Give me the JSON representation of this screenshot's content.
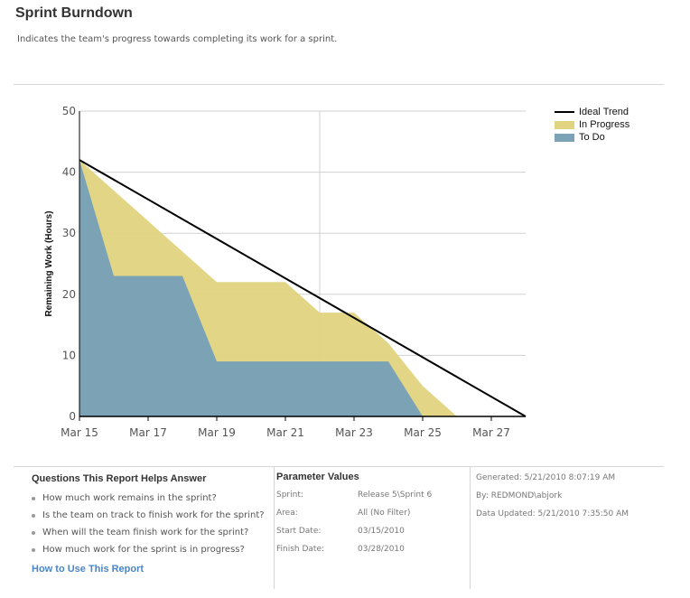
{
  "header": {
    "title": "Sprint Burndown",
    "subtitle": "Indicates the team's progress towards completing its work for a sprint."
  },
  "chart_data": {
    "type": "area",
    "title": "Sprint Burndown",
    "xlabel": "",
    "ylabel": "Remaining Work (Hours)",
    "ylim": [
      0,
      50
    ],
    "yticks": [
      0,
      10,
      20,
      30,
      40,
      50
    ],
    "x": [
      "Mar 15",
      "Mar 16",
      "Mar 17",
      "Mar 18",
      "Mar 19",
      "Mar 20",
      "Mar 21",
      "Mar 22",
      "Mar 23",
      "Mar 24",
      "Mar 25",
      "Mar 26",
      "Mar 27",
      "Mar 28"
    ],
    "xtick_labels": [
      "Mar 15",
      "Mar 17",
      "Mar 19",
      "Mar 21",
      "Mar 23",
      "Mar 25",
      "Mar 27"
    ],
    "series": [
      {
        "name": "Ideal Trend",
        "type": "line",
        "color": "#000000",
        "values": [
          42,
          38.8,
          35.5,
          32.3,
          29.1,
          25.8,
          22.6,
          19.4,
          16.2,
          12.9,
          9.7,
          6.5,
          3.2,
          0
        ]
      },
      {
        "name": "In Progress",
        "type": "stacked-area",
        "color": "#e0d47f",
        "values": [
          0,
          14,
          9,
          4,
          13,
          13,
          13,
          8,
          8,
          3,
          5,
          0,
          0,
          0
        ]
      },
      {
        "name": "To Do",
        "type": "stacked-area",
        "color": "#7ba2b5",
        "values": [
          42,
          23,
          23,
          23,
          9,
          9,
          9,
          9,
          9,
          9,
          0,
          0,
          0,
          0
        ]
      }
    ],
    "total_remaining": [
      42,
      37,
      32,
      27,
      22,
      22,
      22,
      17,
      17,
      12,
      5,
      0,
      0,
      0
    ],
    "legend_position": "right",
    "grid": true
  },
  "legend": [
    {
      "label": "Ideal Trend"
    },
    {
      "label": "In Progress",
      "color": "#e0d47f"
    },
    {
      "label": "To Do",
      "color": "#7ba2b5"
    }
  ],
  "questions": {
    "heading": "Questions This Report Helps Answer",
    "items": [
      "How much work remains in the sprint?",
      "Is the team on track to finish work for the sprint?",
      "When will the team finish work for the sprint?",
      "How much work for the sprint is in progress?"
    ],
    "link": "How to Use This Report"
  },
  "parameters": {
    "heading": "Parameter Values",
    "rows": [
      {
        "label": "Sprint:",
        "value": "Release 5\\Sprint 6"
      },
      {
        "label": "Area:",
        "value": "All (No Filter)"
      },
      {
        "label": "Start Date:",
        "value": "03/15/2010"
      },
      {
        "label": "Finish Date:",
        "value": "03/28/2010"
      }
    ]
  },
  "meta": {
    "generated": "Generated: 5/21/2010 8:07:19 AM",
    "by": "By: REDMOND\\abjork",
    "updated": "Data Updated: 5/21/2010 7:35:50 AM"
  }
}
